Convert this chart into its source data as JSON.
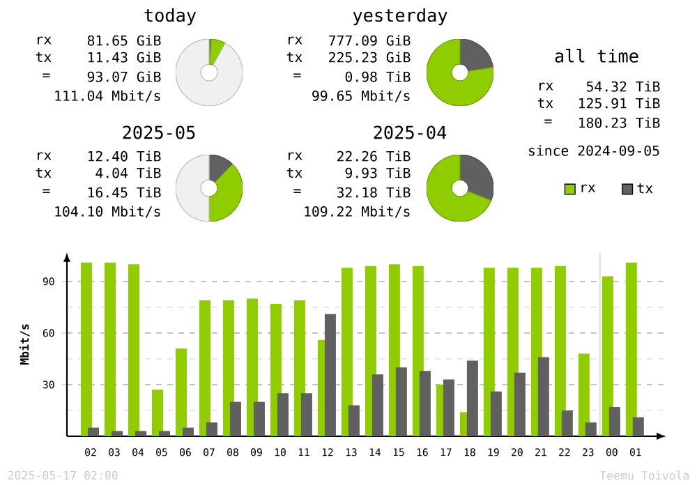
{
  "chart_data": [
    {
      "type": "donut",
      "title": "today",
      "categories": [
        null,
        null,
        null
      ],
      "values": [
        1,
        7,
        92
      ],
      "colors": [
        "#606060",
        "#8fcc00",
        "#f0f0f0"
      ],
      "annotations": [
        "rx",
        "81.65 GiB",
        "tx",
        "11.43 GiB",
        "=",
        "93.07 GiB",
        "111.04 Mbit/s"
      ]
    },
    {
      "type": "donut",
      "title": "yesterday",
      "categories": [
        null,
        null
      ],
      "values": [
        22.5,
        77.5
      ],
      "colors": [
        "#606060",
        "#8fcc00"
      ],
      "annotations": [
        "rx",
        "777.09 GiB",
        "tx",
        "225.23 GiB",
        "=",
        "0.98 TiB",
        "99.65 Mbit/s"
      ]
    },
    {
      "type": "donut",
      "title": "2025-05",
      "categories": [
        null,
        null,
        null
      ],
      "values": [
        12.3,
        37.7,
        50
      ],
      "colors": [
        "#606060",
        "#8fcc00",
        "#f0f0f0"
      ],
      "annotations": [
        "rx",
        "12.40 TiB",
        "tx",
        "4.04 TiB",
        "=",
        "16.45 TiB",
        "104.10 Mbit/s"
      ]
    },
    {
      "type": "donut",
      "title": "2025-04",
      "categories": [
        null,
        null
      ],
      "values": [
        31,
        69
      ],
      "colors": [
        "#606060",
        "#8fcc00"
      ],
      "annotations": [
        "rx",
        "22.26 TiB",
        "tx",
        "9.93 TiB",
        "=",
        "32.18 TiB",
        "109.22 Mbit/s"
      ]
    },
    {
      "type": "other",
      "title": "all time",
      "annotations": [
        "rx",
        "54.32 TiB",
        "tx",
        "125.91 TiB",
        "=",
        "180.23 TiB",
        "since 2024-09-05"
      ]
    },
    {
      "type": "bar",
      "ylabel": "Mbit/s",
      "categories": [
        "02",
        "03",
        "04",
        "05",
        "06",
        "07",
        "08",
        "09",
        "10",
        "11",
        "12",
        "13",
        "14",
        "15",
        "16",
        "17",
        "18",
        "19",
        "20",
        "21",
        "22",
        "23",
        "00",
        "01"
      ],
      "series": [
        {
          "name": "rx",
          "color": "#8fcc00",
          "values": [
            101,
            101,
            100,
            27,
            51,
            79,
            79,
            80,
            77,
            79,
            56,
            98,
            99,
            100,
            99,
            30,
            14,
            98,
            98,
            98,
            99,
            48,
            93,
            101
          ]
        },
        {
          "name": "tx",
          "color": "#606060",
          "values": [
            5,
            3,
            3,
            3,
            5,
            8,
            20,
            20,
            25,
            25,
            71,
            18,
            36,
            40,
            38,
            33,
            44,
            26,
            37,
            46,
            15,
            8,
            17,
            11
          ]
        }
      ],
      "ylim": [
        0,
        107
      ],
      "yticks": [
        {
          "value": 15,
          "label": null
        },
        30,
        {
          "value": 45,
          "label": null
        },
        60,
        {
          "value": 75,
          "label": null
        },
        90
      ],
      "grid": "y",
      "legend": "top right",
      "ref_lines": [
        {
          "axis": "x",
          "value": "00",
          "color": "#d8d8d8"
        }
      ],
      "annotations": [
        "2025-05-17 02:00",
        "Teemu Toivola"
      ]
    }
  ]
}
